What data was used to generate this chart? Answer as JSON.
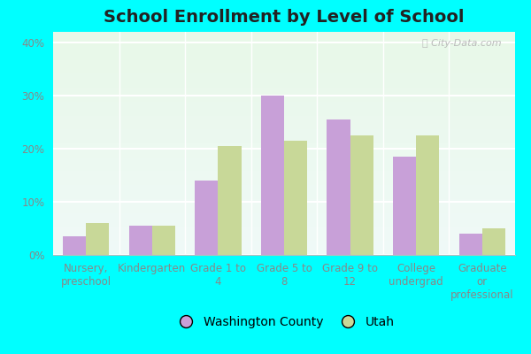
{
  "title": "School Enrollment by Level of School",
  "categories": [
    "Nursery,\npreschool",
    "Kindergarten",
    "Grade 1 to\n4",
    "Grade 5 to\n8",
    "Grade 9 to\n12",
    "College\nundergrad",
    "Graduate\nor\nprofessional"
  ],
  "washington_county": [
    3.5,
    5.5,
    14.0,
    30.0,
    25.5,
    18.5,
    4.0
  ],
  "utah": [
    6.0,
    5.5,
    20.5,
    21.5,
    22.5,
    22.5,
    5.0
  ],
  "washington_color": "#c8a0d8",
  "utah_color": "#c8d898",
  "ylim": [
    0,
    42
  ],
  "yticks": [
    0,
    10,
    20,
    30,
    40
  ],
  "ytick_labels": [
    "0%",
    "10%",
    "20%",
    "30%",
    "40%"
  ],
  "legend_washington": "Washington County",
  "legend_utah": "Utah",
  "outer_bg": "#00ffff",
  "chart_bg_top": "#f0faf8",
  "chart_bg_bottom": "#e8f8e8",
  "grid_color": "#ffffff",
  "tick_color": "#888888",
  "title_color": "#222222",
  "title_fontsize": 14,
  "axis_fontsize": 8.5,
  "legend_fontsize": 10,
  "bar_width": 0.35
}
